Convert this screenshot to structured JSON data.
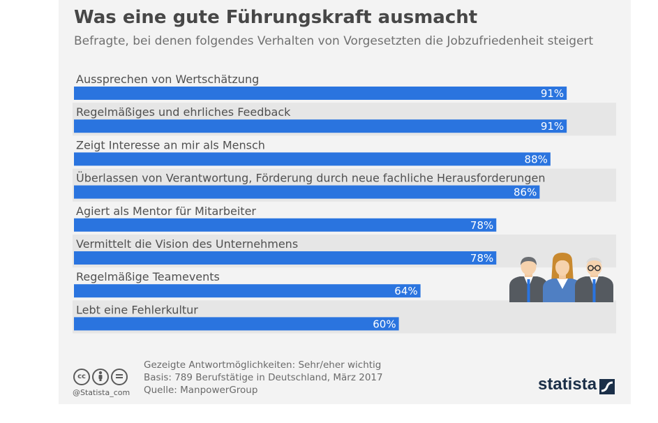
{
  "header": {
    "title": "Was eine gute Führungskraft ausmacht",
    "subtitle": "Befragte, bei denen folgendes Verhalten von Vorgesetzten die Jobzufriedenheit steigert"
  },
  "colors": {
    "bar": "#2a74df",
    "row_stripe": "#e6e6e6",
    "card_bg": "#f3f3f3",
    "label_text": "#505050",
    "value_text": "#ffffff",
    "brand": "#1b2f48"
  },
  "chart_data": {
    "type": "bar",
    "orientation": "horizontal",
    "categories": [
      "Aussprechen von Wertschätzung",
      "Regelmäßiges und ehrliches Feedback",
      "Zeigt Interesse an mir als Mensch",
      "Überlassen von Verantwortung, Förderung durch neue fachliche Herausforderungen",
      "Agiert als Mentor für Mitarbeiter",
      "Vermittelt die Vision des Unternehmens",
      "Regelmäßige Teamevents",
      "Lebt eine Fehlerkultur"
    ],
    "values": [
      91,
      91,
      88,
      86,
      78,
      78,
      64,
      60
    ],
    "value_labels": [
      "91%",
      "91%",
      "88%",
      "86%",
      "78%",
      "78%",
      "64%",
      "60%"
    ],
    "unit": "%",
    "xlim": [
      0,
      100
    ],
    "grid": false,
    "legend": "none"
  },
  "footer": {
    "note1": "Gezeigte Antwortmöglichkeiten: Sehr/eher wichtig",
    "note2": "Basis: 789 Berufstätige in Deutschland, März 2017",
    "note3": "Quelle: ManpowerGroup",
    "credit": "@Statista_com",
    "brand": "statista",
    "cc_icons": [
      "cc-icon",
      "by-icon",
      "nd-icon"
    ]
  }
}
